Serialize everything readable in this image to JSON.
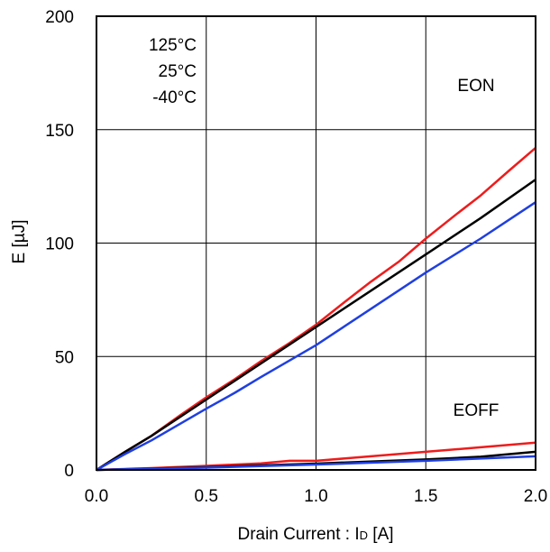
{
  "chart_data": {
    "type": "line",
    "xlabel": "Drain Current : I",
    "xlabel_sub": "D",
    "xlabel_unit": " [A]",
    "ylabel": "E [µJ]",
    "xlim": [
      0,
      2.0
    ],
    "ylim": [
      0,
      200
    ],
    "x_ticks": [
      "0.0",
      "0.5",
      "1.0",
      "1.5",
      "2.0"
    ],
    "y_ticks": [
      "0",
      "50",
      "100",
      "150",
      "200"
    ],
    "grid": true,
    "legend": [
      "125°C",
      "25°C",
      "-40°C"
    ],
    "legend_placement": "top-left",
    "annotations": [
      {
        "text": "EON",
        "x": 1.75,
        "y": 167
      },
      {
        "text": "EOFF",
        "x": 1.75,
        "y": 26
      }
    ],
    "colors": {
      "125C": "#ee1c1c",
      "25C": "#000000",
      "m40C": "#1f3fe0"
    },
    "series": [
      {
        "group": "EON",
        "temp": "125C",
        "color": "#ee1c1c",
        "x": [
          0,
          0.13,
          0.25,
          0.38,
          0.5,
          0.63,
          0.75,
          0.88,
          1.0,
          1.13,
          1.25,
          1.38,
          1.5,
          1.63,
          1.75,
          1.88,
          2.0
        ],
        "y": [
          0,
          8,
          15,
          24,
          32,
          40,
          48,
          56,
          64,
          74,
          83,
          92,
          102,
          112,
          121,
          132,
          142
        ]
      },
      {
        "group": "EON",
        "temp": "25C",
        "color": "#000000",
        "x": [
          0,
          0.13,
          0.25,
          0.5,
          0.75,
          1.0,
          1.25,
          1.5,
          1.75,
          2.0
        ],
        "y": [
          0,
          8,
          15,
          31,
          47,
          63,
          79,
          95,
          111,
          128
        ]
      },
      {
        "group": "EON",
        "temp": "-40C",
        "color": "#1f3fe0",
        "x": [
          0,
          0.13,
          0.25,
          0.5,
          0.63,
          0.75,
          1.0,
          1.25,
          1.5,
          1.75,
          2.0
        ],
        "y": [
          0,
          7,
          13,
          27,
          34,
          41,
          55,
          71,
          87,
          102,
          118
        ]
      },
      {
        "group": "EOFF",
        "temp": "125C",
        "color": "#ee1c1c",
        "x": [
          0,
          0.25,
          0.5,
          0.75,
          0.88,
          1.0,
          1.25,
          1.5,
          1.75,
          2.0
        ],
        "y": [
          0,
          0.8,
          1.8,
          2.9,
          4.0,
          4.0,
          6.0,
          8.0,
          10.0,
          12.0
        ]
      },
      {
        "group": "EOFF",
        "temp": "25C",
        "color": "#000000",
        "x": [
          0,
          0.5,
          1.0,
          1.5,
          1.75,
          2.0
        ],
        "y": [
          0,
          1.2,
          2.8,
          4.6,
          5.8,
          8.0
        ]
      },
      {
        "group": "EOFF",
        "temp": "-40C",
        "color": "#1f3fe0",
        "x": [
          0,
          0.5,
          1.0,
          1.5,
          2.0
        ],
        "y": [
          0,
          1.0,
          2.4,
          4.0,
          6.0
        ]
      }
    ]
  }
}
